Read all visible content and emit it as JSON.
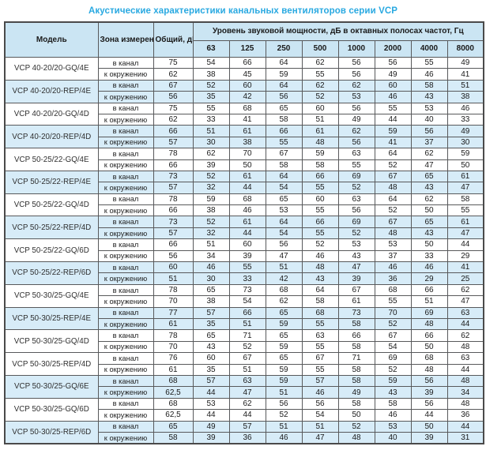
{
  "title": "Акустические характеристики канальных вентиляторов  серии VCP",
  "table": {
    "headers": {
      "model": "Модель",
      "zone": "Зона измерения",
      "total": "Общий, дБА",
      "octave_band": "Уровень звуковой мощности, дБ в октавных полосах частот, Гц",
      "frequencies": [
        "63",
        "125",
        "250",
        "500",
        "1000",
        "2000",
        "4000",
        "8000"
      ]
    },
    "zone_labels": {
      "duct": "в канал",
      "ambient": "к окружению"
    },
    "rows": [
      {
        "model": "VCP 40-20/20-GQ/4E",
        "shaded": false,
        "duct": {
          "total": "75",
          "values": [
            54,
            66,
            64,
            62,
            56,
            56,
            55,
            49
          ]
        },
        "ambient": {
          "total": "62",
          "values": [
            38,
            45,
            59,
            55,
            56,
            49,
            46,
            41
          ]
        }
      },
      {
        "model": "VCP 40-20/20-REP/4E",
        "shaded": true,
        "duct": {
          "total": "67",
          "values": [
            52,
            60,
            64,
            62,
            62,
            60,
            58,
            51
          ]
        },
        "ambient": {
          "total": "56",
          "values": [
            35,
            42,
            56,
            52,
            53,
            46,
            43,
            38
          ]
        }
      },
      {
        "model": "VCP 40-20/20-GQ/4D",
        "shaded": false,
        "duct": {
          "total": "75",
          "values": [
            55,
            68,
            65,
            60,
            56,
            55,
            53,
            46
          ]
        },
        "ambient": {
          "total": "62",
          "values": [
            33,
            41,
            58,
            51,
            49,
            44,
            40,
            33
          ]
        }
      },
      {
        "model": "VCP 40-20/20-REP/4D",
        "shaded": true,
        "duct": {
          "total": "66",
          "values": [
            51,
            61,
            66,
            61,
            62,
            59,
            56,
            49
          ]
        },
        "ambient": {
          "total": "57",
          "values": [
            30,
            38,
            55,
            48,
            56,
            41,
            37,
            30
          ]
        }
      },
      {
        "model": "VCP 50-25/22-GQ/4E",
        "shaded": false,
        "duct": {
          "total": "78",
          "values": [
            62,
            70,
            67,
            59,
            63,
            64,
            62,
            59
          ]
        },
        "ambient": {
          "total": "66",
          "values": [
            39,
            50,
            58,
            58,
            55,
            52,
            47,
            50
          ]
        }
      },
      {
        "model": "VCP 50-25/22-REP/4E",
        "shaded": true,
        "duct": {
          "total": "73",
          "values": [
            52,
            61,
            64,
            66,
            69,
            67,
            65,
            61
          ]
        },
        "ambient": {
          "total": "57",
          "values": [
            32,
            44,
            54,
            55,
            52,
            48,
            43,
            47
          ]
        }
      },
      {
        "model": "VCP 50-25/22-GQ/4D",
        "shaded": false,
        "duct": {
          "total": "78",
          "values": [
            59,
            68,
            65,
            60,
            63,
            64,
            62,
            58
          ]
        },
        "ambient": {
          "total": "66",
          "values": [
            38,
            46,
            53,
            55,
            56,
            52,
            50,
            55
          ]
        }
      },
      {
        "model": "VCP 50-25/22-REP/4D",
        "shaded": true,
        "duct": {
          "total": "73",
          "values": [
            52,
            61,
            64,
            66,
            69,
            67,
            65,
            61
          ]
        },
        "ambient": {
          "total": "57",
          "values": [
            32,
            44,
            54,
            55,
            52,
            48,
            43,
            47
          ]
        }
      },
      {
        "model": "VCP 50-25/22-GQ/6D",
        "shaded": false,
        "duct": {
          "total": "66",
          "values": [
            51,
            60,
            56,
            52,
            53,
            53,
            50,
            44
          ]
        },
        "ambient": {
          "total": "56",
          "values": [
            34,
            39,
            47,
            46,
            43,
            37,
            33,
            29
          ]
        }
      },
      {
        "model": "VCP 50-25/22-REP/6D",
        "shaded": true,
        "duct": {
          "total": "60",
          "values": [
            46,
            55,
            51,
            48,
            47,
            46,
            46,
            41
          ]
        },
        "ambient": {
          "total": "51",
          "values": [
            30,
            33,
            42,
            43,
            39,
            36,
            29,
            25
          ]
        }
      },
      {
        "model": "VCP 50-30/25-GQ/4E",
        "shaded": false,
        "duct": {
          "total": "78",
          "values": [
            65,
            73,
            68,
            64,
            67,
            68,
            66,
            62
          ]
        },
        "ambient": {
          "total": "70",
          "values": [
            38,
            54,
            62,
            58,
            61,
            55,
            51,
            47
          ]
        }
      },
      {
        "model": "VCP 50-30/25-REP/4E",
        "shaded": true,
        "duct": {
          "total": "77",
          "values": [
            57,
            66,
            65,
            68,
            73,
            70,
            69,
            63
          ]
        },
        "ambient": {
          "total": "61",
          "values": [
            35,
            51,
            59,
            55,
            58,
            52,
            48,
            44
          ]
        }
      },
      {
        "model": "VCP 50-30/25-GQ/4D",
        "shaded": false,
        "duct": {
          "total": "78",
          "values": [
            65,
            71,
            65,
            63,
            66,
            67,
            66,
            62
          ]
        },
        "ambient": {
          "total": "70",
          "values": [
            43,
            52,
            59,
            55,
            58,
            54,
            50,
            48
          ]
        }
      },
      {
        "model": "VCP 50-30/25-REP/4D",
        "shaded": false,
        "duct": {
          "total": "76",
          "values": [
            60,
            67,
            65,
            67,
            71,
            69,
            68,
            63
          ]
        },
        "ambient": {
          "total": "61",
          "values": [
            35,
            51,
            59,
            55,
            58,
            52,
            48,
            44
          ]
        }
      },
      {
        "model": "VCP 50-30/25-GQ/6E",
        "shaded": true,
        "duct": {
          "total": "68",
          "values": [
            57,
            63,
            59,
            57,
            58,
            59,
            56,
            48
          ]
        },
        "ambient": {
          "total": "62,5",
          "values": [
            44,
            47,
            51,
            46,
            49,
            43,
            39,
            34
          ]
        }
      },
      {
        "model": "VCP 50-30/25-GQ/6D",
        "shaded": false,
        "duct": {
          "total": "68",
          "values": [
            53,
            62,
            56,
            56,
            58,
            58,
            56,
            48
          ]
        },
        "ambient": {
          "total": "62,5",
          "values": [
            44,
            44,
            52,
            54,
            50,
            46,
            44,
            36
          ]
        }
      },
      {
        "model": "VCP 50-30/25-REP/6D",
        "shaded": true,
        "duct": {
          "total": "65",
          "values": [
            49,
            57,
            51,
            51,
            52,
            53,
            50,
            44
          ]
        },
        "ambient": {
          "total": "58",
          "values": [
            39,
            36,
            46,
            47,
            48,
            40,
            39,
            31
          ]
        }
      }
    ]
  },
  "colors": {
    "title_blue": "#29a9e1",
    "header_bg": "#cbe5f3",
    "band_bg": "#d7ecf8",
    "border": "#58595b"
  }
}
